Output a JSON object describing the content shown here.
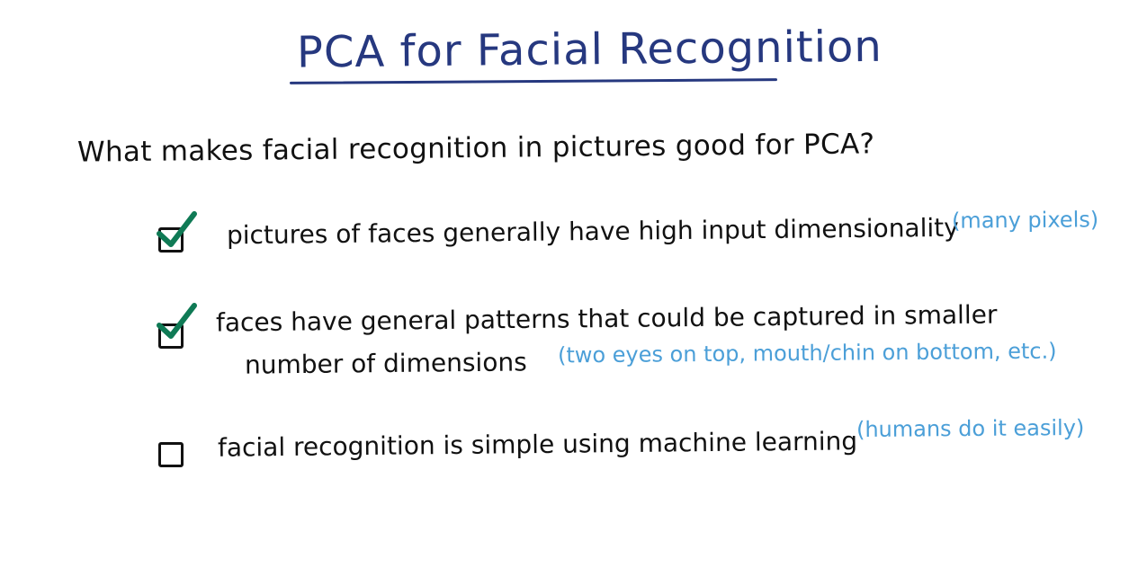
{
  "title": "PCA for Facial Recognition",
  "question": "What makes facial recognition in pictures good for PCA?",
  "colors": {
    "title": "#26387f",
    "text": "#111111",
    "note": "#4b9fd8",
    "check": "#0f7a55"
  },
  "items": [
    {
      "text": "pictures of faces generally have high input dimensionality",
      "note": "(many pixels)",
      "checked": true
    },
    {
      "text_line1": "faces have general patterns that could be captured in smaller",
      "text_line2": "number of dimensions",
      "note": "(two eyes on top, mouth/chin on bottom, etc.)",
      "checked": true
    },
    {
      "text": "facial recognition is simple using machine learning",
      "note": "(humans do it easily)",
      "checked": false
    }
  ]
}
